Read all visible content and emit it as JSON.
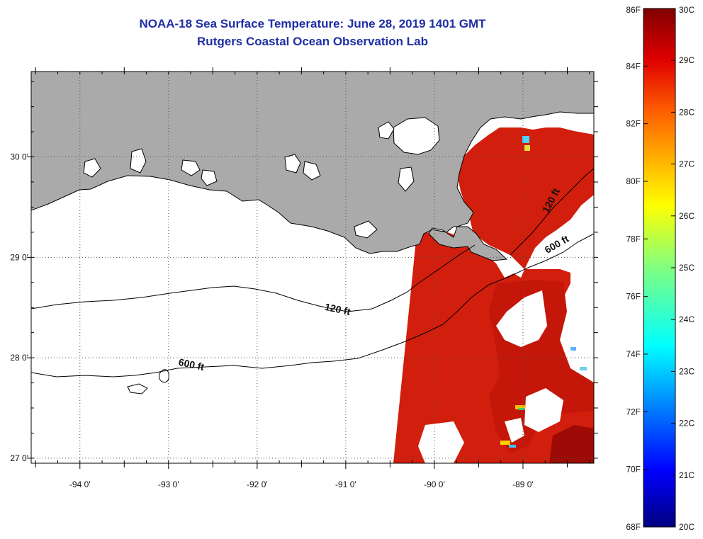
{
  "header": {
    "title": "NOAA-18 Sea Surface Temperature:  June 28, 2019 1401 GMT",
    "subtitle": "Rutgers Coastal Ocean Observation Lab"
  },
  "map": {
    "lon_range": [
      -94.55,
      -88.2
    ],
    "lat_range": [
      26.95,
      30.85
    ],
    "lon_ticks": [
      {
        "value": -94,
        "label": "-94 0'"
      },
      {
        "value": -93,
        "label": "-93 0'"
      },
      {
        "value": -92,
        "label": "-92 0'"
      },
      {
        "value": -91,
        "label": "-91 0'"
      },
      {
        "value": -90,
        "label": "-90 0'"
      },
      {
        "value": -89,
        "label": "-89 0'"
      }
    ],
    "lat_ticks": [
      {
        "value": 27,
        "label": "27 0'"
      },
      {
        "value": 28,
        "label": "28 0'"
      },
      {
        "value": 29,
        "label": "29 0'"
      },
      {
        "value": 30,
        "label": "30 0'"
      }
    ],
    "contours": [
      {
        "label": "120 ft"
      },
      {
        "label": "600 ft"
      }
    ],
    "contour_label_instances": [
      {
        "label": "120 ft",
        "lon": -91.1,
        "lat": 28.45,
        "angle": 12
      },
      {
        "label": "600 ft",
        "lon": -92.75,
        "lat": 27.9,
        "angle": 12
      },
      {
        "label": "120 ft",
        "lon": -88.65,
        "lat": 29.55,
        "angle": -62
      },
      {
        "label": "600 ft",
        "lon": -88.6,
        "lat": 29.1,
        "angle": -30
      }
    ],
    "colors": {
      "land": "#aaaaaa",
      "ocean_no_data": "#ffffff",
      "sst_warm": "#d21e0c"
    }
  },
  "colorbar": {
    "min_c": 20,
    "max_c": 30,
    "fahrenheit_labels": [
      "86F",
      "84F",
      "82F",
      "80F",
      "78F",
      "76F",
      "74F",
      "72F",
      "70F",
      "68F"
    ],
    "celsius_labels": [
      "30C",
      "29C",
      "28C",
      "27C",
      "26C",
      "25C",
      "24C",
      "23C",
      "22C",
      "21C",
      "20C"
    ]
  }
}
